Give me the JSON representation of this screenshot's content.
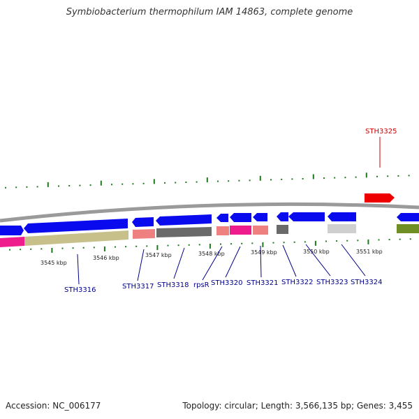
{
  "header": {
    "title": "Symbiobacterium thermophilum IAM 14863, complete genome"
  },
  "footer": {
    "accession": "Accession: NC_006177",
    "summary": "Topology: circular; Length: 3,566,135 bp; Genes: 3,455"
  },
  "scale": {
    "ticks": [
      "3545 kbp",
      "3546 kbp",
      "3547 kbp",
      "3548 kbp",
      "3549 kbp",
      "3550 kbp",
      "3551 kbp"
    ]
  },
  "genes": {
    "labels": [
      "STH3316",
      "STH3317",
      "STH3318",
      "rpsR",
      "STH3320",
      "STH3321",
      "STH3322",
      "STH3323",
      "STH3324"
    ],
    "highlight_label": "STH3325"
  },
  "colors": {
    "forward": "#0a0aee",
    "highlight": "#ee0000",
    "label": "#00008b",
    "highlight_label": "#cc0000",
    "magenta": "#ee1c8c",
    "khaki": "#c8c08a",
    "salmon": "#ee8080",
    "grey": "#6a6a6a",
    "lightgrey": "#cfcfcf",
    "olive": "#6f8e23",
    "gc_ticks": "#1d7a1d"
  }
}
